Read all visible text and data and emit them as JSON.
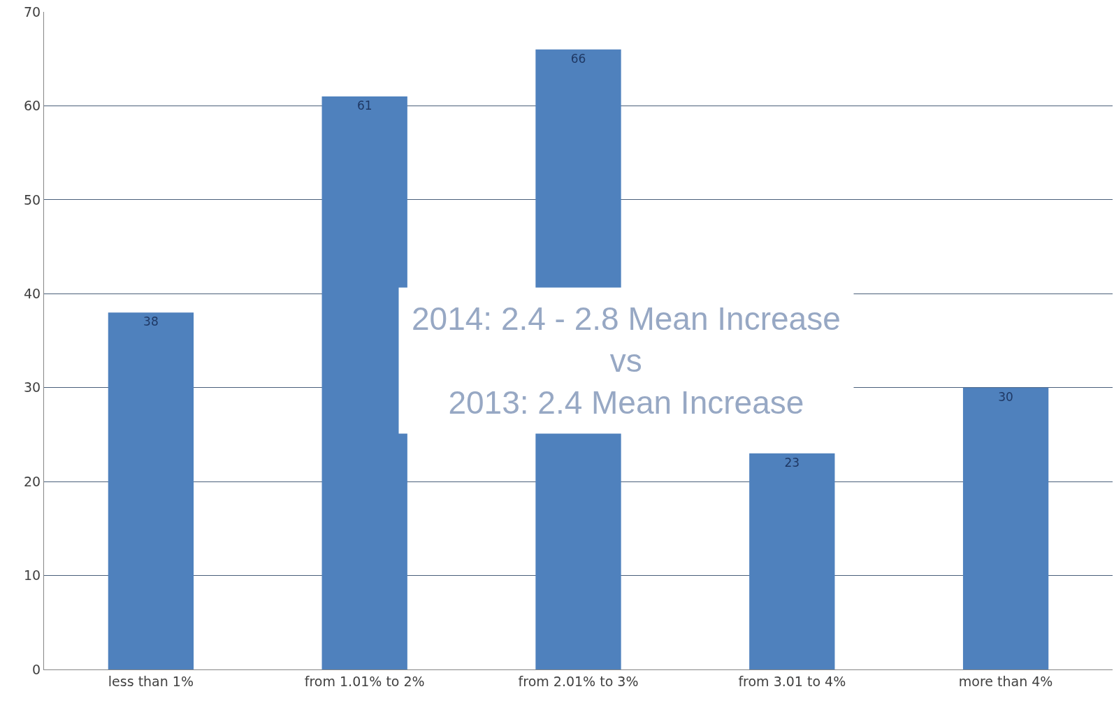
{
  "chart_data": {
    "type": "bar",
    "categories": [
      "less than 1%",
      "from 1.01% to 2%",
      "from 2.01% to 3%",
      "from 3.01 to 4%",
      "more than 4%"
    ],
    "values": [
      38,
      61,
      66,
      23,
      30
    ],
    "color": "#4f81bd",
    "ylim": [
      0,
      70
    ],
    "yticks": [
      0,
      10,
      20,
      30,
      40,
      50,
      60,
      70
    ],
    "grid": "y",
    "data_labels": true,
    "annotations": [
      "2014: 2.4 - 2.8 Mean Increase\nvs\n2013: 2.4 Mean Increase"
    ]
  }
}
